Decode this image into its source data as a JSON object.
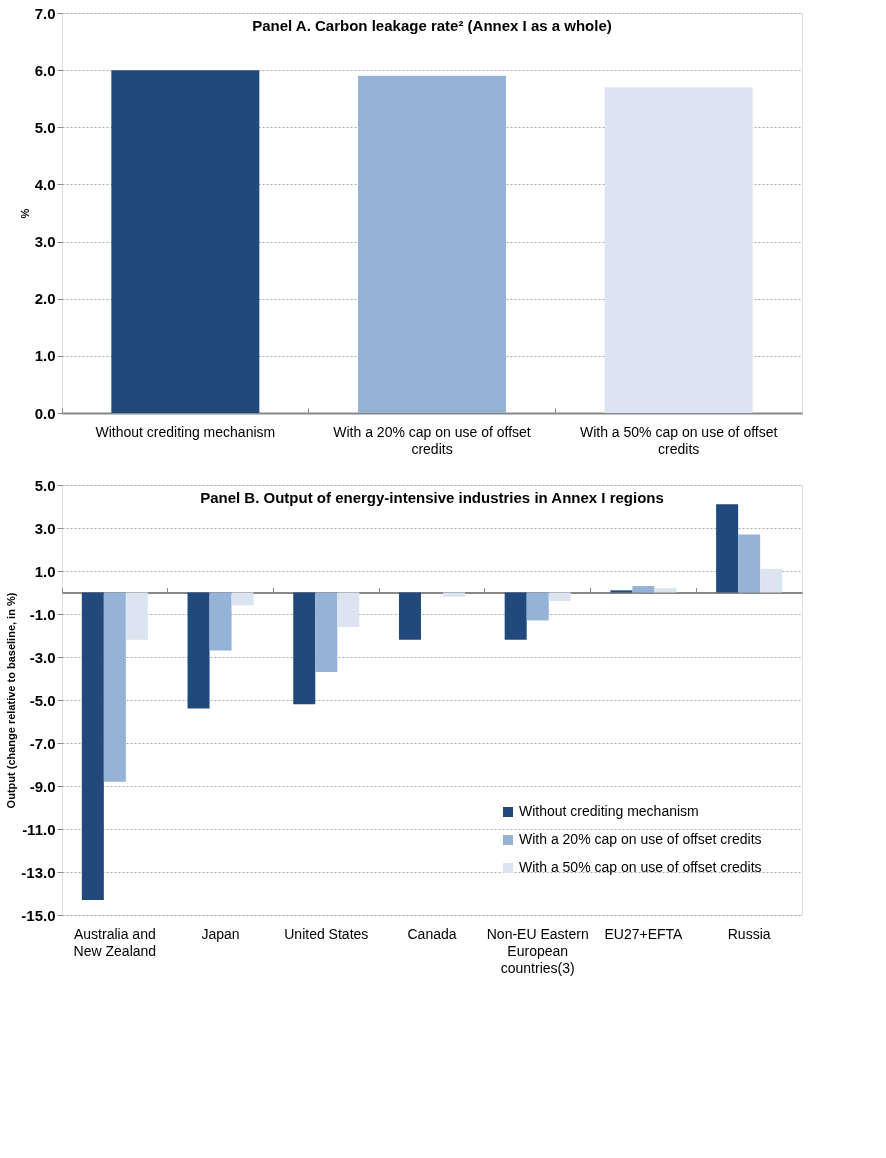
{
  "chart_data": [
    {
      "type": "bar",
      "title": "Panel A. Carbon leakage rate² (Annex I as a whole)",
      "ylabel": "%",
      "categories": [
        "Without crediting mechanism",
        "With a 20% cap on use of offset credits",
        "With a 50% cap on use of offset credits"
      ],
      "values": [
        6.0,
        5.9,
        5.7
      ],
      "colors": [
        "#21497c",
        "#95b3d7",
        "#dbe5f1"
      ],
      "ylim": [
        0,
        7
      ],
      "yticks": [
        {
          "value": 0,
          "label": "0.0"
        },
        {
          "value": 1,
          "label": "1.0"
        },
        {
          "value": 2,
          "label": "2.0"
        },
        {
          "value": 3,
          "label": "3.0"
        },
        {
          "value": 4,
          "label": "4.0"
        },
        {
          "value": 5,
          "label": "5.0"
        },
        {
          "value": 6,
          "label": "6.0"
        },
        {
          "value": 7,
          "label": "7.0"
        }
      ],
      "grid": "y"
    },
    {
      "type": "bar",
      "title": "Panel B. Output of energy-intensive industries in Annex I regions",
      "ylabel": "Output (change relative to baseline, in %)",
      "categories": [
        "Australia and New Zealand",
        "Japan",
        "United States",
        "Canada",
        "Non-EU Eastern European countries(3)",
        "EU27+EFTA",
        "Russia"
      ],
      "series": [
        {
          "name": "Without crediting mechanism",
          "color": "#21497c",
          "values": [
            -14.3,
            -5.4,
            -5.2,
            -2.2,
            -2.2,
            0.1,
            4.1
          ]
        },
        {
          "name": "With a 20% cap on use of offset credits",
          "color": "#95b3d7",
          "values": [
            -8.8,
            -2.7,
            -3.7,
            0.0,
            -1.3,
            0.3,
            2.7
          ]
        },
        {
          "name": "With a 50% cap on use of offset credits",
          "color": "#dbe5f1",
          "values": [
            -2.2,
            -0.6,
            -1.6,
            -0.2,
            -0.4,
            0.2,
            1.1
          ]
        }
      ],
      "ylim": [
        -15,
        5
      ],
      "yticks": [
        {
          "value": -15,
          "label": "-15.0"
        },
        {
          "value": -13,
          "label": "-13.0"
        },
        {
          "value": -11,
          "label": "-11.0"
        },
        {
          "value": -9,
          "label": "-9.0"
        },
        {
          "value": -7,
          "label": "-7.0"
        },
        {
          "value": -5,
          "label": "-5.0"
        },
        {
          "value": -3,
          "label": "-3.0"
        },
        {
          "value": -1,
          "label": "-1.0"
        },
        {
          "value": 1,
          "label": "1.0"
        },
        {
          "value": 3,
          "label": "3.0"
        },
        {
          "value": 5,
          "label": "5.0"
        }
      ],
      "grid": "y",
      "legend": "bottom right"
    }
  ]
}
